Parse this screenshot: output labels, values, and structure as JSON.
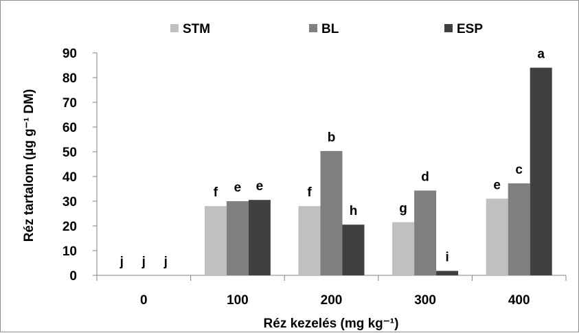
{
  "chart_data": {
    "type": "bar",
    "title": "",
    "xlabel": "Réz kezelés (mg kg⁻¹)",
    "ylabel": "Réz tartalom (µg g⁻¹ DM)",
    "categories": [
      "0",
      "100",
      "200",
      "300",
      "400"
    ],
    "ylim": [
      0,
      90
    ],
    "yticks": [
      0,
      10,
      20,
      30,
      40,
      50,
      60,
      70,
      80,
      90
    ],
    "grid": false,
    "legend_position": "top",
    "series": [
      {
        "name": "STM",
        "color": "#c0c0c0",
        "values": [
          0,
          28,
          28,
          21.5,
          31
        ],
        "labels": [
          "j",
          "f",
          "f",
          "g",
          "e"
        ]
      },
      {
        "name": "BL",
        "color": "#808080",
        "values": [
          0,
          30,
          50.3,
          34.3,
          37.2
        ],
        "labels": [
          "j",
          "e",
          "b",
          "d",
          "c"
        ]
      },
      {
        "name": "ESP",
        "color": "#404040",
        "values": [
          0,
          30.5,
          20.5,
          1.8,
          84
        ],
        "labels": [
          "j",
          "e",
          "h",
          "i",
          "a"
        ]
      }
    ]
  }
}
